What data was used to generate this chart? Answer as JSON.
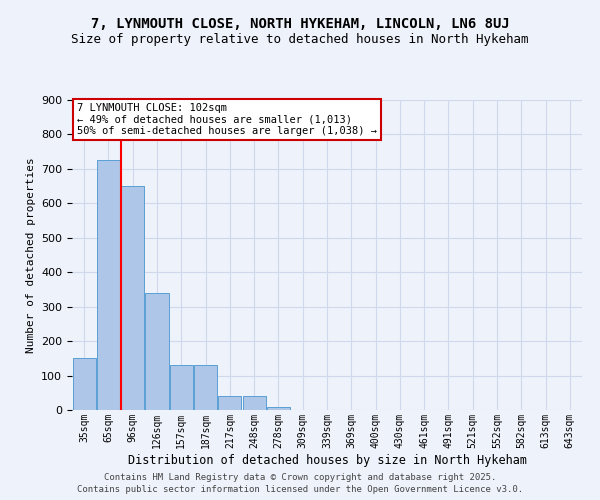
{
  "title1": "7, LYNMOUTH CLOSE, NORTH HYKEHAM, LINCOLN, LN6 8UJ",
  "title2": "Size of property relative to detached houses in North Hykeham",
  "xlabel": "Distribution of detached houses by size in North Hykeham",
  "ylabel": "Number of detached properties",
  "categories": [
    "35sqm",
    "65sqm",
    "96sqm",
    "126sqm",
    "157sqm",
    "187sqm",
    "217sqm",
    "248sqm",
    "278sqm",
    "309sqm",
    "339sqm",
    "369sqm",
    "400sqm",
    "430sqm",
    "461sqm",
    "491sqm",
    "521sqm",
    "552sqm",
    "582sqm",
    "613sqm",
    "643sqm"
  ],
  "values": [
    150,
    725,
    650,
    340,
    130,
    130,
    40,
    40,
    10,
    0,
    0,
    0,
    0,
    0,
    0,
    0,
    0,
    0,
    0,
    0,
    0
  ],
  "bar_color": "#aec6e8",
  "bar_edge_color": "#5a9fd4",
  "red_line_x": 1.5,
  "annotation_text": "7 LYNMOUTH CLOSE: 102sqm\n← 49% of detached houses are smaller (1,013)\n50% of semi-detached houses are larger (1,038) →",
  "annotation_box_color": "#ffffff",
  "annotation_border_color": "#cc0000",
  "footer1": "Contains HM Land Registry data © Crown copyright and database right 2025.",
  "footer2": "Contains public sector information licensed under the Open Government Licence v3.0.",
  "bg_color": "#eef2fa",
  "grid_color": "#d0d8ee",
  "title1_fontsize": 10,
  "title2_fontsize": 9,
  "ylim": [
    0,
    900
  ],
  "yticks": [
    0,
    100,
    200,
    300,
    400,
    500,
    600,
    700,
    800,
    900
  ]
}
